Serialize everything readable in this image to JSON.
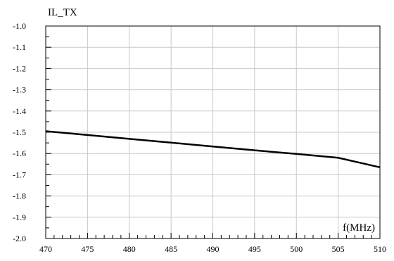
{
  "chart_data": {
    "type": "line",
    "title": "",
    "ylabel": "IL_TX",
    "xlabel": "f(MHz)",
    "xlim": [
      470,
      510
    ],
    "ylim": [
      -2.0,
      -1.0
    ],
    "xticks": [
      470,
      475,
      480,
      485,
      490,
      495,
      500,
      505,
      510
    ],
    "yticks": [
      -1.0,
      -1.1,
      -1.2,
      -1.3,
      -1.4,
      -1.5,
      -1.6,
      -1.7,
      -1.8,
      -1.9,
      -2.0
    ],
    "xtick_labels": [
      "470",
      "475",
      "480",
      "485",
      "490",
      "495",
      "500",
      "505",
      "510"
    ],
    "ytick_labels": [
      "-1.0",
      "-1.1",
      "-1.2",
      "-1.3",
      "-1.4",
      "-1.5",
      "-1.6",
      "-1.7",
      "-1.8",
      "-1.9",
      "-2.0"
    ],
    "grid": true,
    "series": [
      {
        "x": [
          470,
          475,
          480,
          485,
          490,
          495,
          500,
          505,
          510
        ],
        "y": [
          -1.495,
          -1.513,
          -1.531,
          -1.549,
          -1.567,
          -1.585,
          -1.602,
          -1.62,
          -1.665
        ]
      }
    ]
  }
}
